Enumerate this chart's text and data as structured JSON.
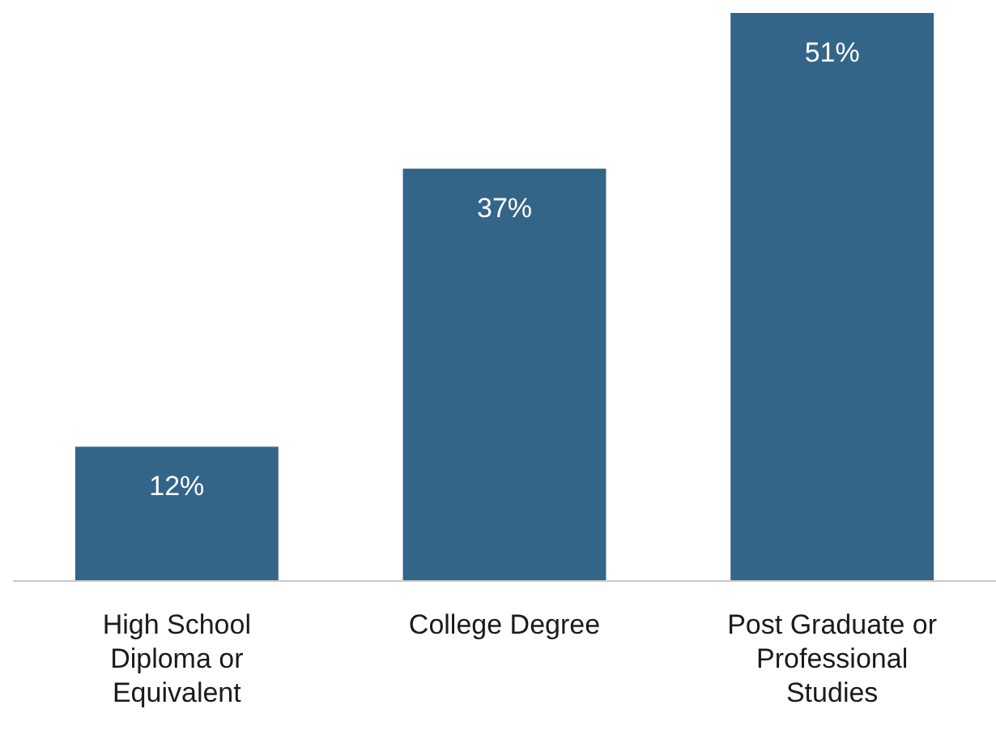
{
  "chart_data": {
    "type": "bar",
    "categories": [
      "High School Diploma or Equivalent",
      "College Degree",
      "Post Graduate or Professional Studies"
    ],
    "values": [
      12,
      37,
      51
    ],
    "value_labels": [
      "12%",
      "37%",
      "51%"
    ],
    "color": "#336589"
  }
}
